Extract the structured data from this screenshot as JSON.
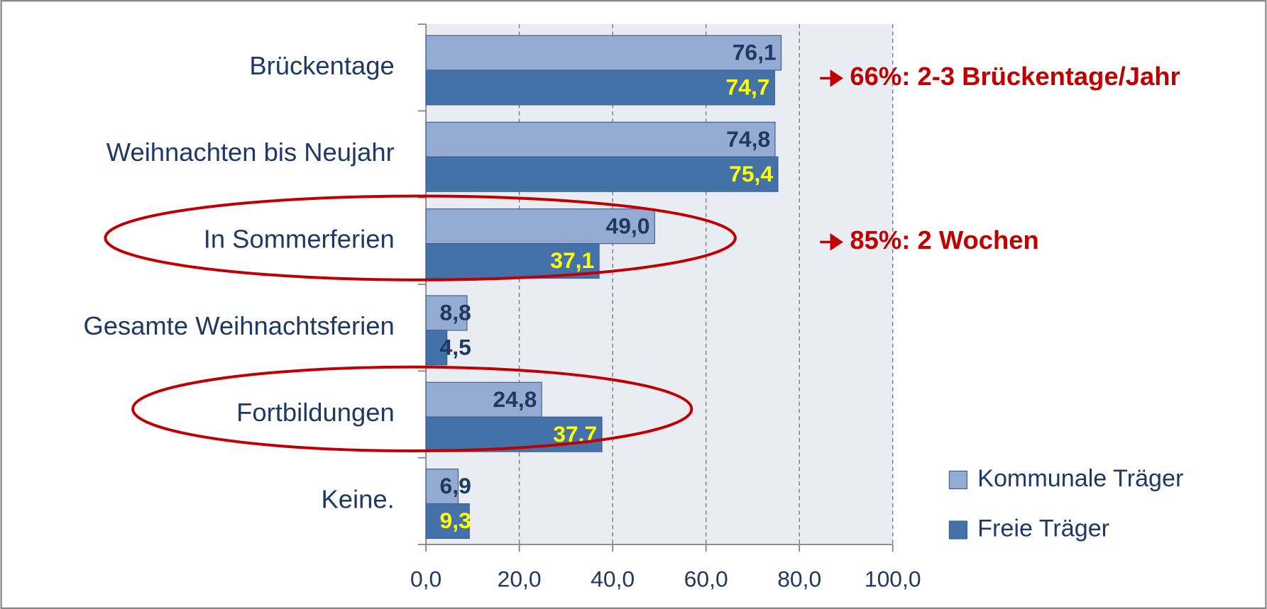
{
  "chart_data": {
    "type": "barh",
    "categories": [
      "Brückentage",
      "Weihnachten bis Neujahr",
      "In Sommerferien",
      "Gesamte Weihnachtsferien",
      "Fortbildungen",
      "Keine."
    ],
    "series": [
      {
        "name": "Kommunale Träger",
        "color": "#95abd3",
        "values": [
          76.1,
          74.8,
          49.0,
          8.8,
          24.8,
          6.9
        ],
        "value_labels": [
          "76,1",
          "74,8",
          "49,0",
          "8,8",
          "24,8",
          "6,9"
        ],
        "value_label_colors": [
          "#1f3864",
          "#1f3864",
          "#1f3864",
          "#1f3864",
          "#1f3864",
          "#1f3864"
        ]
      },
      {
        "name": "Freie Träger",
        "color": "#4472a8",
        "values": [
          74.7,
          75.4,
          37.1,
          4.5,
          37.7,
          9.3
        ],
        "value_labels": [
          "74,7",
          "75,4",
          "37,1",
          "4,5",
          "37.7",
          "9,3"
        ],
        "value_label_colors": [
          "#ffff00",
          "#ffff00",
          "#ffff00",
          "#1f3864",
          "#ffff00",
          "#ffff00"
        ]
      }
    ],
    "xlim": [
      0,
      100
    ],
    "xticks": [
      {
        "value": 0,
        "label": "0,0"
      },
      {
        "value": 20,
        "label": "20,0"
      },
      {
        "value": 40,
        "label": "40,0"
      },
      {
        "value": 60,
        "label": "60,0"
      },
      {
        "value": 80,
        "label": "80,0"
      },
      {
        "value": 100,
        "label": "100,0"
      }
    ],
    "grid": true,
    "legend": "lower right",
    "annotations": [
      "66%: 2-3 Brückentage/Jahr",
      "85%: 2 Wochen"
    ]
  }
}
